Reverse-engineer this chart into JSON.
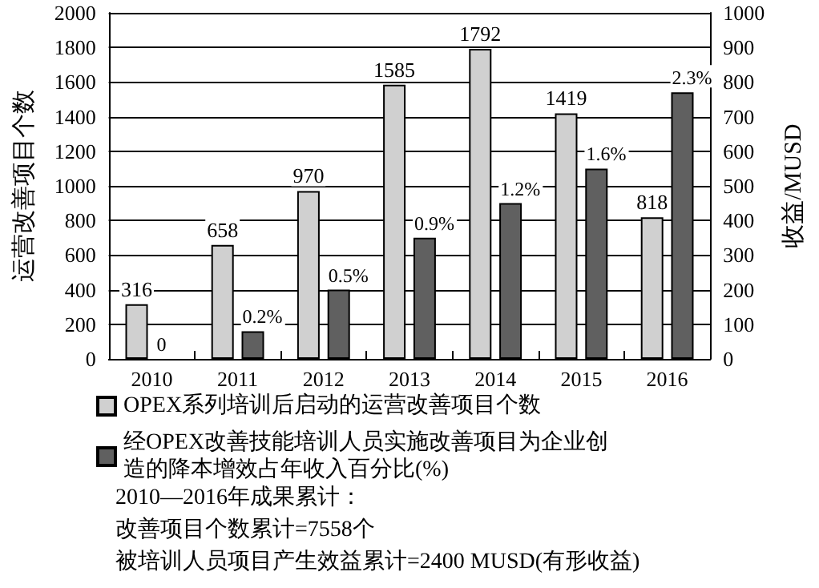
{
  "chart_data": {
    "type": "bar",
    "categories": [
      "2010",
      "2011",
      "2012",
      "2013",
      "2014",
      "2015",
      "2016"
    ],
    "ylabel": "运营改善项目个数",
    "y2label": "收益/MUSD",
    "ylim": [
      0,
      2000
    ],
    "yticks": [
      0,
      200,
      400,
      600,
      800,
      1000,
      1200,
      1400,
      1600,
      1800,
      2000
    ],
    "y2lim": [
      0,
      1000
    ],
    "y2ticks": [
      0,
      100,
      200,
      300,
      400,
      500,
      600,
      700,
      800,
      900,
      1000
    ],
    "grid": "y",
    "legend": "bottom",
    "series": [
      {
        "name": "OPEX系列培训后启动的运营改善项目个数",
        "color": "#d0d0d0",
        "values": [
          316,
          658,
          970,
          1585,
          1792,
          1419,
          818
        ],
        "value_labels": [
          "316",
          "658",
          "970",
          "1585",
          "1792",
          "1419",
          "818"
        ]
      },
      {
        "name": "经OPEX改善技能培训人员实施改善项目为企业创造的降本增效占年收入百分比(%)",
        "color": "#606060",
        "axis": "y2",
        "values": [
          0,
          80,
          200,
          350,
          450,
          550,
          770
        ]
      }
    ],
    "annotations": [
      {
        "text": "0",
        "x": "2010",
        "y": 0
      },
      {
        "text": "0.2%",
        "x": "2011",
        "y": 160
      },
      {
        "text": "0.5%",
        "x": "2012",
        "y": 400
      },
      {
        "text": "0.9%",
        "x": "2013",
        "y": 700
      },
      {
        "text": "1.2%",
        "x": "2014",
        "y": 900
      },
      {
        "text": "1.6%",
        "x": "2015",
        "y": 1100
      },
      {
        "text": "2.3%",
        "x": "2016",
        "y": 1540
      },
      "2010—2016年成果累计：",
      "改善项目个数累计=7558个",
      "被培训人员项目产生效益累计=2400 MUSD(有形收益)"
    ]
  }
}
